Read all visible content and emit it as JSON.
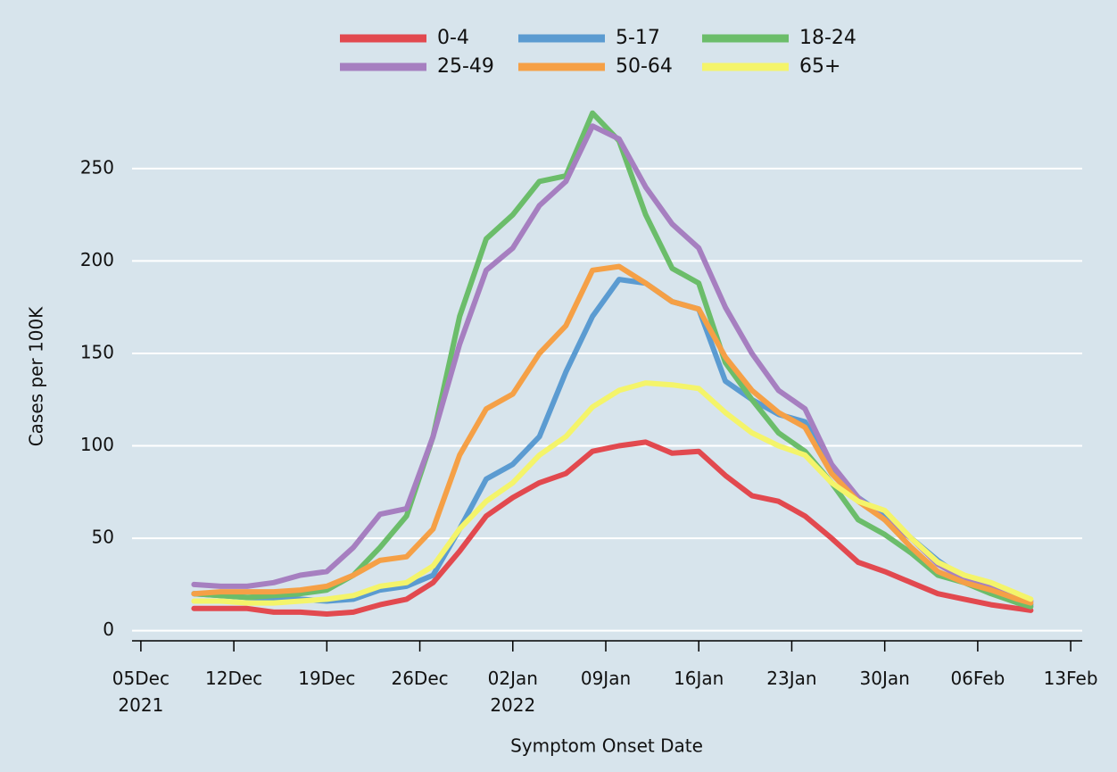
{
  "chart_data": {
    "type": "line",
    "x_label": "Symptom Onset Date",
    "y_label": "Cases per 100K",
    "x": [
      "2021-12-09",
      "2021-12-11",
      "2021-12-13",
      "2021-12-15",
      "2021-12-17",
      "2021-12-19",
      "2021-12-21",
      "2021-12-23",
      "2021-12-25",
      "2021-12-27",
      "2021-12-29",
      "2021-12-31",
      "2022-01-02",
      "2022-01-04",
      "2022-01-06",
      "2022-01-08",
      "2022-01-10",
      "2022-01-12",
      "2022-01-14",
      "2022-01-16",
      "2022-01-18",
      "2022-01-20",
      "2022-01-22",
      "2022-01-24",
      "2022-01-26",
      "2022-01-28",
      "2022-01-30",
      "2022-02-01",
      "2022-02-03",
      "2022-02-05",
      "2022-02-07",
      "2022-02-09",
      "2022-02-10"
    ],
    "series": [
      {
        "name": "0-4",
        "color": "#e2494f",
        "values": [
          12,
          12,
          12,
          10,
          10,
          9,
          10,
          14,
          17,
          26,
          43,
          62,
          72,
          80,
          85,
          97,
          100,
          102,
          96,
          97,
          84,
          73,
          70,
          62,
          50,
          37,
          32,
          26,
          20,
          17,
          14,
          12,
          11
        ]
      },
      {
        "name": "5-17",
        "color": "#5b9bd1",
        "values": [
          20,
          19,
          18,
          17,
          17,
          16,
          17,
          22,
          24,
          30,
          55,
          82,
          90,
          105,
          140,
          170,
          190,
          188,
          178,
          174,
          135,
          125,
          117,
          113,
          88,
          72,
          62,
          50,
          38,
          28,
          22,
          16,
          14
        ]
      },
      {
        "name": "18-24",
        "color": "#6bbd6a",
        "values": [
          20,
          19,
          18,
          19,
          20,
          22,
          30,
          45,
          62,
          105,
          170,
          212,
          225,
          243,
          246,
          280,
          265,
          225,
          196,
          188,
          145,
          125,
          107,
          97,
          80,
          60,
          52,
          42,
          30,
          26,
          20,
          15,
          13
        ]
      },
      {
        "name": "25-49",
        "color": "#a67fc0",
        "values": [
          25,
          24,
          24,
          26,
          30,
          32,
          45,
          63,
          66,
          105,
          155,
          195,
          207,
          230,
          243,
          273,
          266,
          240,
          220,
          207,
          175,
          150,
          130,
          120,
          90,
          72,
          60,
          50,
          36,
          28,
          24,
          18,
          16
        ]
      },
      {
        "name": "50-64",
        "color": "#f5a046",
        "values": [
          20,
          21,
          21,
          21,
          22,
          24,
          30,
          38,
          40,
          55,
          95,
          120,
          128,
          150,
          165,
          195,
          197,
          188,
          178,
          174,
          148,
          130,
          118,
          110,
          85,
          70,
          60,
          45,
          32,
          26,
          22,
          17,
          15
        ]
      },
      {
        "name": "65+",
        "color": "#f4f46a",
        "values": [
          16,
          16,
          15,
          15,
          16,
          17,
          19,
          24,
          26,
          35,
          55,
          70,
          80,
          95,
          105,
          121,
          130,
          134,
          133,
          131,
          118,
          107,
          100,
          95,
          80,
          70,
          65,
          50,
          37,
          30,
          26,
          20,
          17
        ]
      }
    ],
    "xlim": [
      "2021-12-04",
      "2022-02-14"
    ],
    "xticks": [
      {
        "value": "2021-12-05",
        "label": "05Dec\n2021"
      },
      {
        "value": "2021-12-12",
        "label": "12Dec"
      },
      {
        "value": "2021-12-19",
        "label": "19Dec"
      },
      {
        "value": "2021-12-26",
        "label": "26Dec"
      },
      {
        "value": "2022-01-02",
        "label": "02Jan\n2022"
      },
      {
        "value": "2022-01-09",
        "label": "09Jan"
      },
      {
        "value": "2022-01-16",
        "label": "16Jan"
      },
      {
        "value": "2022-01-23",
        "label": "23Jan"
      },
      {
        "value": "2022-01-30",
        "label": "30Jan"
      },
      {
        "value": "2022-02-06",
        "label": "06Feb"
      },
      {
        "value": "2022-02-13",
        "label": "13Feb"
      }
    ],
    "ylim": [
      -5,
      290
    ],
    "yticks": [
      0,
      50,
      100,
      150,
      200,
      250
    ],
    "grid": true,
    "legend": "top"
  }
}
